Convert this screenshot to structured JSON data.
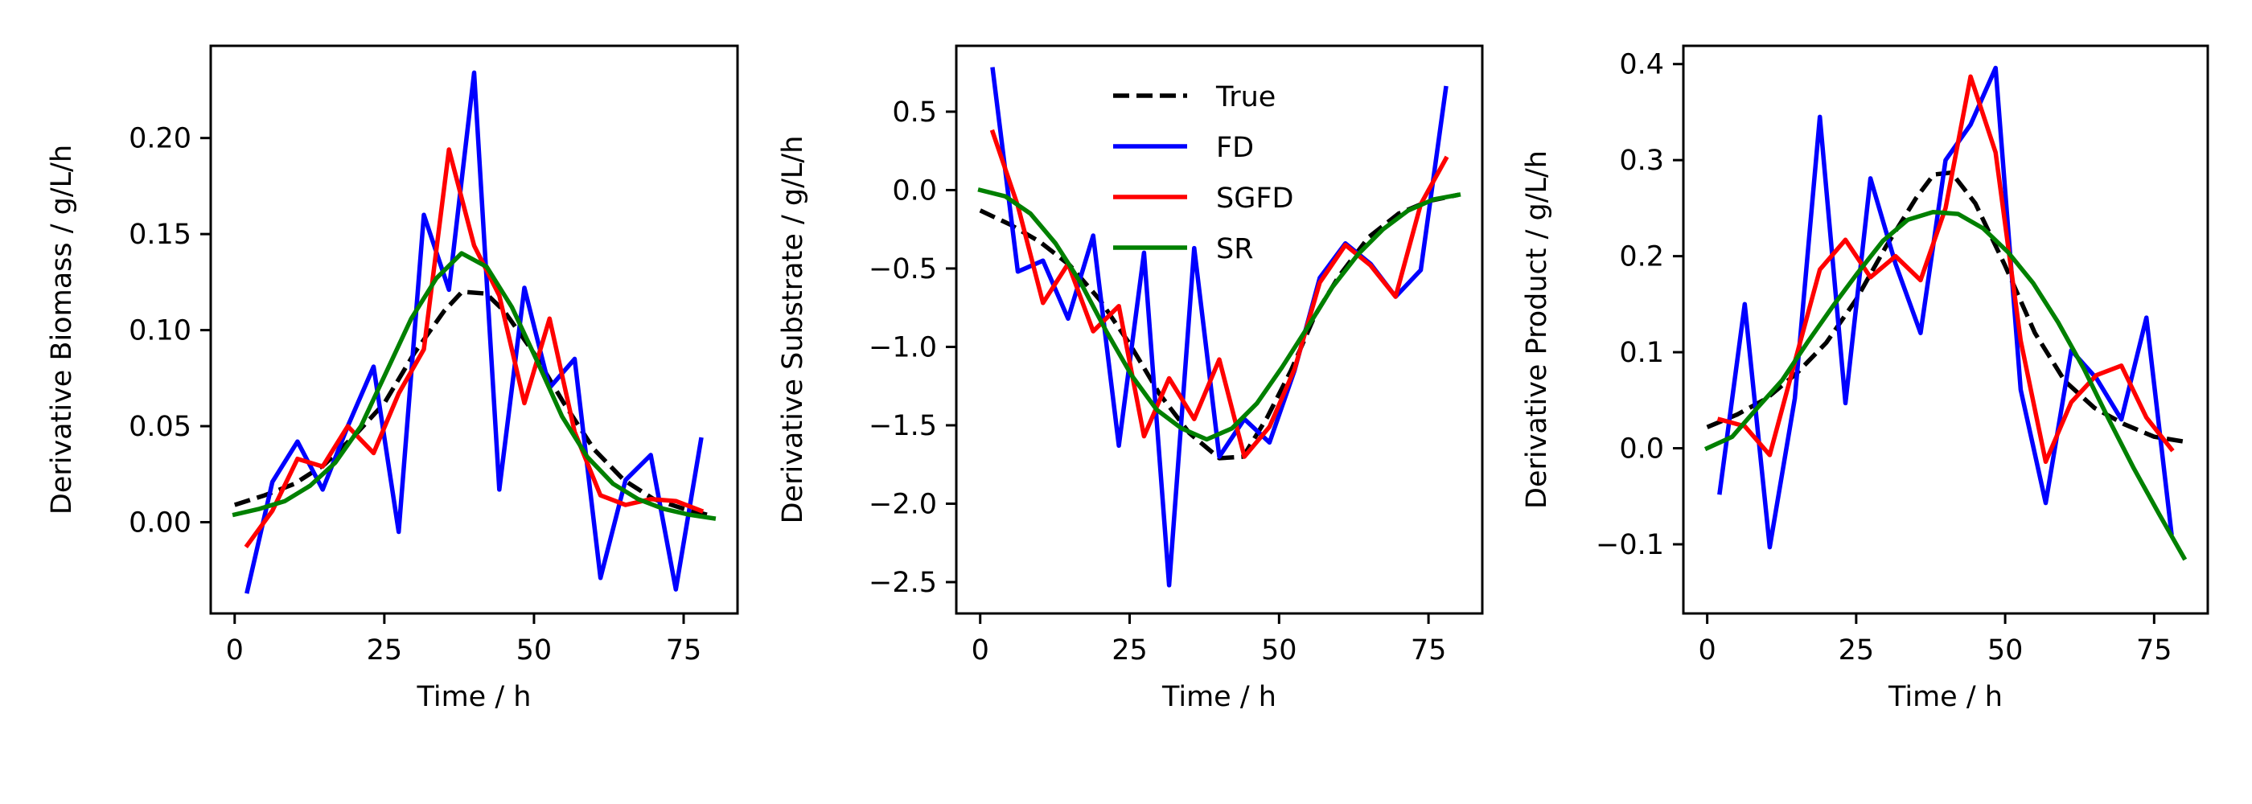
{
  "chart_data": [
    {
      "type": "line",
      "title": "",
      "xlabel": "Time / h",
      "ylabel": "Derivative Biomass / g/L/h",
      "xlim": [
        -4,
        84
      ],
      "ylim": [
        -0.0475,
        0.248
      ],
      "xticks": [
        0,
        25,
        50,
        75
      ],
      "xtick_labels": [
        "0",
        "25",
        "50",
        "75"
      ],
      "yticks": [
        0.0,
        0.05,
        0.1,
        0.15,
        0.2
      ],
      "ytick_labels": [
        "0.00",
        "0.05",
        "0.10",
        "0.15",
        "0.20"
      ],
      "grid": false,
      "legend": null,
      "series": [
        {
          "name": "True",
          "color": "#000000",
          "style": "dashed",
          "x": [
            0,
            5,
            10,
            15,
            20,
            25,
            30,
            35,
            38,
            42,
            45,
            50,
            55,
            60,
            65,
            70,
            75,
            80
          ],
          "y": [
            0.009,
            0.014,
            0.02,
            0.03,
            0.045,
            0.062,
            0.088,
            0.11,
            0.12,
            0.119,
            0.11,
            0.088,
            0.062,
            0.038,
            0.022,
            0.012,
            0.007,
            0.003
          ]
        },
        {
          "name": "FD",
          "color": "#0000ff",
          "style": "solid",
          "x": [
            2.1,
            6.3,
            10.5,
            14.7,
            18.9,
            23.2,
            27.4,
            31.6,
            35.8,
            40.0,
            44.2,
            48.4,
            52.6,
            56.8,
            61.1,
            65.3,
            69.5,
            73.7,
            77.9
          ],
          "y": [
            -0.036,
            0.021,
            0.042,
            0.017,
            0.05,
            0.081,
            -0.005,
            0.16,
            0.121,
            0.234,
            0.017,
            0.122,
            0.07,
            0.085,
            -0.029,
            0.022,
            0.035,
            -0.035,
            0.043
          ]
        },
        {
          "name": "SGFD",
          "color": "#ff0000",
          "style": "solid",
          "x": [
            2.1,
            6.3,
            10.5,
            14.7,
            18.9,
            23.2,
            27.4,
            31.6,
            35.8,
            40.0,
            44.2,
            48.4,
            52.6,
            56.8,
            61.1,
            65.3,
            69.5,
            73.7,
            77.9
          ],
          "y": [
            -0.012,
            0.006,
            0.033,
            0.029,
            0.05,
            0.036,
            0.067,
            0.09,
            0.194,
            0.144,
            0.118,
            0.062,
            0.106,
            0.047,
            0.014,
            0.009,
            0.012,
            0.011,
            0.006
          ]
        },
        {
          "name": "SR",
          "color": "#008000",
          "style": "solid",
          "x": [
            0,
            4.2,
            8.4,
            12.6,
            16.8,
            21.1,
            25.3,
            29.5,
            33.7,
            37.9,
            42.1,
            46.3,
            50.5,
            54.7,
            58.9,
            63.2,
            67.4,
            71.6,
            75.8,
            80
          ],
          "y": [
            0.004,
            0.007,
            0.011,
            0.019,
            0.031,
            0.05,
            0.078,
            0.106,
            0.127,
            0.14,
            0.133,
            0.112,
            0.084,
            0.055,
            0.034,
            0.02,
            0.012,
            0.007,
            0.004,
            0.002
          ]
        }
      ]
    },
    {
      "type": "line",
      "title": "",
      "xlabel": "Time / h",
      "ylabel": "Derivative Substrate / g/L/h",
      "xlim": [
        -4,
        84
      ],
      "ylim": [
        -2.7,
        0.92
      ],
      "xticks": [
        0,
        25,
        50,
        75
      ],
      "xtick_labels": [
        "0",
        "25",
        "50",
        "75"
      ],
      "yticks": [
        0.5,
        0.0,
        -0.5,
        -1.0,
        -1.5,
        -2.0,
        -2.5
      ],
      "ytick_labels": [
        "0.5",
        "0.0",
        "−0.5",
        "−1.0",
        "−1.5",
        "−2.0",
        "−2.5"
      ],
      "grid": false,
      "legend": {
        "placement": "upper-center",
        "entries": [
          "True",
          "FD",
          "SGFD",
          "SR"
        ]
      },
      "series": [
        {
          "name": "True",
          "color": "#000000",
          "style": "dashed",
          "x": [
            0,
            5,
            10,
            15,
            20,
            25,
            30,
            35,
            40,
            44,
            48,
            52,
            56,
            60,
            65,
            70,
            75,
            80
          ],
          "y": [
            -0.13,
            -0.22,
            -0.33,
            -0.48,
            -0.7,
            -0.98,
            -1.3,
            -1.55,
            -1.71,
            -1.7,
            -1.45,
            -1.15,
            -0.8,
            -0.55,
            -0.3,
            -0.15,
            -0.07,
            -0.03
          ]
        },
        {
          "name": "FD",
          "color": "#0000ff",
          "style": "solid",
          "x": [
            2.1,
            6.3,
            10.5,
            14.7,
            18.9,
            23.2,
            27.4,
            31.6,
            35.8,
            40.0,
            44.2,
            48.4,
            52.6,
            56.8,
            61.1,
            65.3,
            69.5,
            73.7,
            77.9
          ],
          "y": [
            0.77,
            -0.52,
            -0.45,
            -0.82,
            -0.29,
            -1.63,
            -0.4,
            -2.52,
            -0.37,
            -1.7,
            -1.46,
            -1.61,
            -1.15,
            -0.56,
            -0.34,
            -0.47,
            -0.68,
            -0.51,
            0.65
          ]
        },
        {
          "name": "SGFD",
          "color": "#ff0000",
          "style": "solid",
          "x": [
            2.1,
            6.3,
            10.5,
            14.7,
            18.9,
            23.2,
            27.4,
            31.6,
            35.8,
            40.0,
            44.2,
            48.4,
            52.6,
            56.8,
            61.1,
            65.3,
            69.5,
            73.7,
            77.9
          ],
          "y": [
            0.37,
            -0.1,
            -0.72,
            -0.47,
            -0.9,
            -0.74,
            -1.57,
            -1.2,
            -1.46,
            -1.08,
            -1.7,
            -1.51,
            -1.14,
            -0.59,
            -0.35,
            -0.48,
            -0.68,
            -0.09,
            0.2
          ]
        },
        {
          "name": "SR",
          "color": "#008000",
          "style": "solid",
          "x": [
            0,
            4.2,
            8.4,
            12.6,
            16.8,
            21.1,
            25.3,
            29.5,
            33.7,
            37.9,
            42.1,
            46.3,
            50.5,
            54.7,
            58.9,
            63.2,
            67.4,
            71.6,
            75.8,
            80
          ],
          "y": [
            0.0,
            -0.04,
            -0.15,
            -0.34,
            -0.59,
            -0.9,
            -1.18,
            -1.4,
            -1.52,
            -1.59,
            -1.52,
            -1.36,
            -1.13,
            -0.88,
            -0.62,
            -0.41,
            -0.25,
            -0.13,
            -0.06,
            -0.03
          ]
        }
      ]
    },
    {
      "type": "line",
      "title": "",
      "xlabel": "Time / h",
      "ylabel": "Derivative Product / g/L/h",
      "xlim": [
        -4,
        84
      ],
      "ylim": [
        -0.172,
        0.419
      ],
      "xticks": [
        0,
        25,
        50,
        75
      ],
      "xtick_labels": [
        "0",
        "25",
        "50",
        "75"
      ],
      "yticks": [
        0.4,
        0.3,
        0.2,
        0.1,
        0.0,
        -0.1
      ],
      "ytick_labels": [
        "0.4",
        "0.3",
        "0.2",
        "0.1",
        "0.0",
        "−0.1"
      ],
      "grid": false,
      "legend": null,
      "series": [
        {
          "name": "True",
          "color": "#000000",
          "style": "dashed",
          "x": [
            0,
            5,
            10,
            15,
            20,
            25,
            30,
            35,
            38,
            41,
            45,
            50,
            55,
            60,
            65,
            70,
            75,
            80
          ],
          "y": [
            0.022,
            0.035,
            0.052,
            0.078,
            0.11,
            0.155,
            0.21,
            0.26,
            0.285,
            0.287,
            0.255,
            0.19,
            0.12,
            0.07,
            0.042,
            0.025,
            0.012,
            0.007
          ]
        },
        {
          "name": "FD",
          "color": "#0000ff",
          "style": "solid",
          "x": [
            2.1,
            6.3,
            10.5,
            14.7,
            18.9,
            23.2,
            27.4,
            31.6,
            35.8,
            40.0,
            44.2,
            48.4,
            52.6,
            56.8,
            61.1,
            65.3,
            69.5,
            73.7,
            77.9
          ],
          "y": [
            -0.046,
            0.15,
            -0.103,
            0.052,
            0.345,
            0.047,
            0.281,
            0.192,
            0.12,
            0.3,
            0.337,
            0.396,
            0.061,
            -0.057,
            0.102,
            0.073,
            0.03,
            0.136,
            -0.088
          ]
        },
        {
          "name": "SGFD",
          "color": "#ff0000",
          "style": "solid",
          "x": [
            2.1,
            6.3,
            10.5,
            14.7,
            18.9,
            23.2,
            27.4,
            31.6,
            35.8,
            40.0,
            44.2,
            48.4,
            52.6,
            56.8,
            61.1,
            65.3,
            69.5,
            73.7,
            77.9
          ],
          "y": [
            0.03,
            0.023,
            -0.007,
            0.09,
            0.186,
            0.217,
            0.178,
            0.2,
            0.175,
            0.25,
            0.387,
            0.308,
            0.112,
            -0.014,
            0.048,
            0.076,
            0.086,
            0.032,
            -0.001
          ]
        },
        {
          "name": "SR",
          "color": "#008000",
          "style": "solid",
          "x": [
            0,
            4.2,
            8.4,
            12.6,
            16.8,
            21.1,
            25.3,
            29.5,
            33.7,
            37.9,
            42.1,
            46.3,
            50.5,
            54.7,
            58.9,
            63.2,
            67.4,
            71.6,
            75.8,
            80
          ],
          "y": [
            0.0,
            0.012,
            0.042,
            0.071,
            0.11,
            0.148,
            0.183,
            0.216,
            0.238,
            0.246,
            0.244,
            0.229,
            0.204,
            0.172,
            0.131,
            0.083,
            0.03,
            -0.021,
            -0.068,
            -0.114
          ]
        }
      ]
    }
  ]
}
